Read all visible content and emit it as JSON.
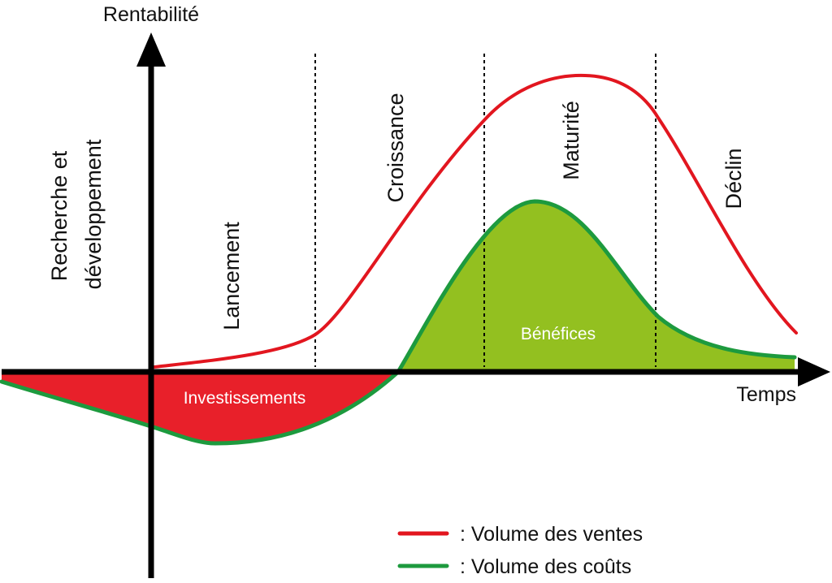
{
  "axes": {
    "y_label": "Rentabilité",
    "x_label": "Temps"
  },
  "phases": {
    "rd_line1": "Recherche et",
    "rd_line2": "développement",
    "launch": "Lancement",
    "growth": "Croissance",
    "maturity": "Maturité",
    "decline": "Déclin"
  },
  "areas": {
    "investments": "Investissements",
    "profits": "Bénéfices"
  },
  "legend": [
    {
      "label": ": Volume des ventes",
      "color": "#e2161f"
    },
    {
      "label": ": Volume des coûts",
      "color": "#1d9a3e"
    }
  ],
  "colors": {
    "sales_line": "#e2161f",
    "cost_line": "#1d9a3e",
    "investment_fill": "#e8202a",
    "profit_fill": "#93c020",
    "axis": "#000000"
  }
}
